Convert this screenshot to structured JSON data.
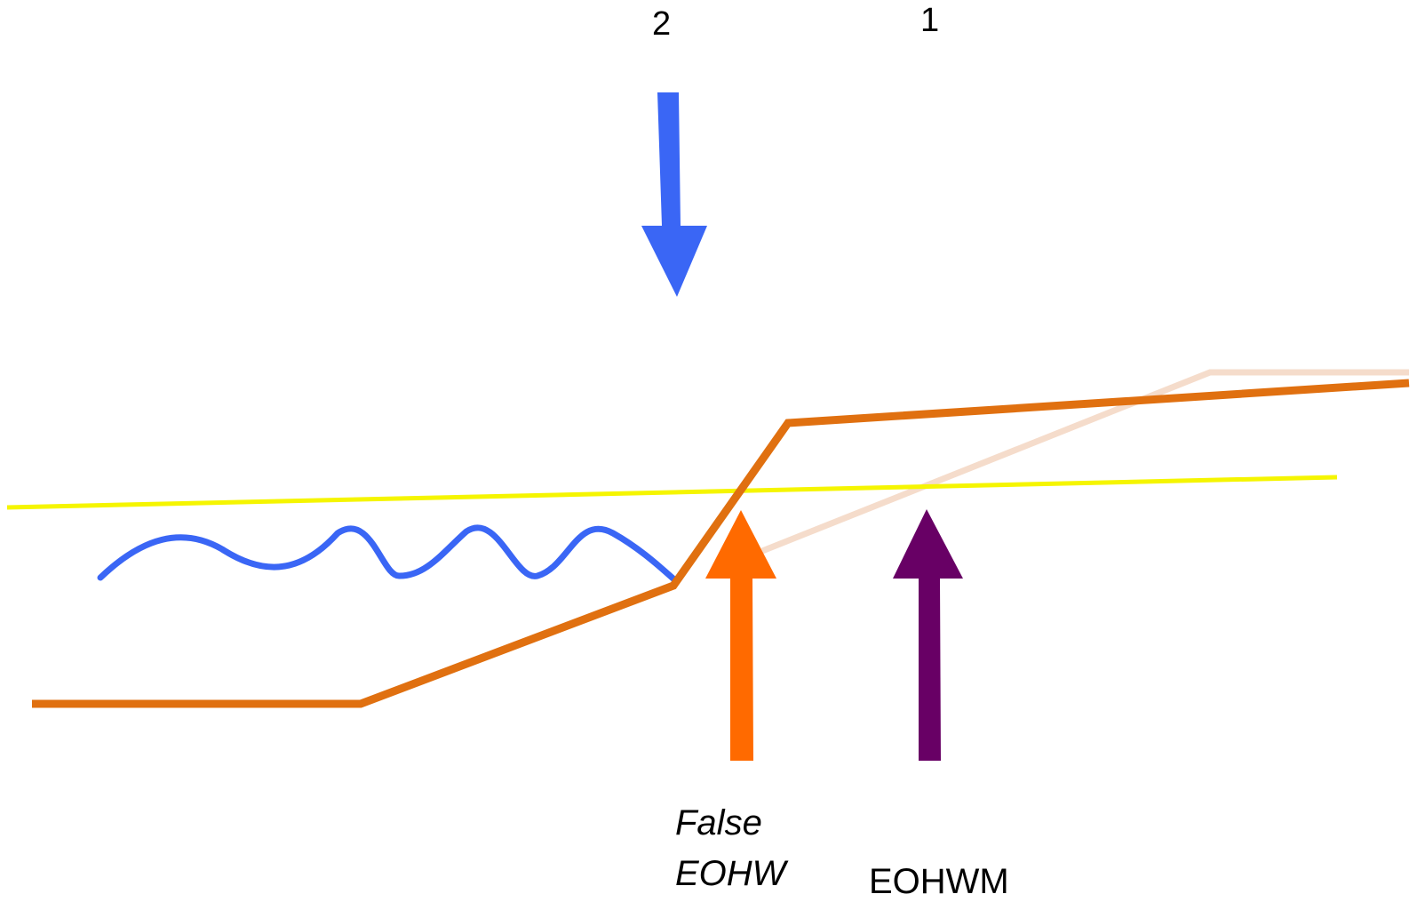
{
  "labels": {
    "marker_2": "2",
    "marker_1": "1",
    "false_eohw_line1": "False",
    "false_eohw_line2": "EOHW",
    "eohwm": "EOHWM"
  },
  "colors": {
    "original_profile": "#e07010",
    "former_profile_faded": "#f5dccb",
    "high_water_line": "#f5f500",
    "water_wave": "#3a66f5",
    "blue_arrow": "#3a66f5",
    "false_eohw_arrow": "#ff6a00",
    "eohwm_arrow": "#680065"
  }
}
